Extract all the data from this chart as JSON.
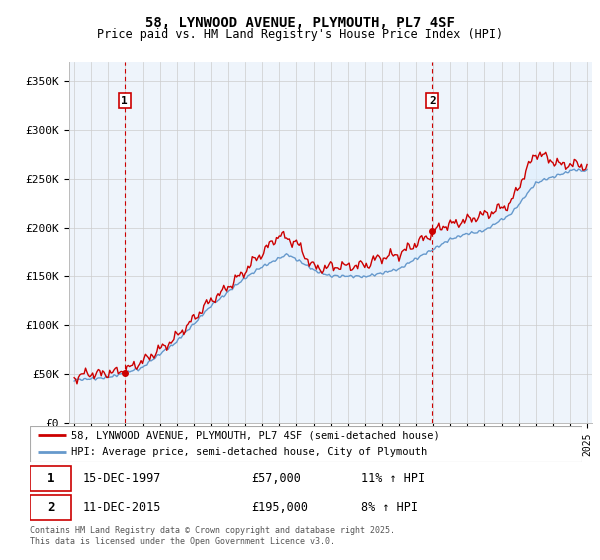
{
  "title1": "58, LYNWOOD AVENUE, PLYMOUTH, PL7 4SF",
  "title2": "Price paid vs. HM Land Registry's House Price Index (HPI)",
  "ylabel_ticks": [
    "£0",
    "£50K",
    "£100K",
    "£150K",
    "£200K",
    "£250K",
    "£300K",
    "£350K"
  ],
  "ytick_vals": [
    0,
    50000,
    100000,
    150000,
    200000,
    250000,
    300000,
    350000
  ],
  "ylim": [
    0,
    370000
  ],
  "xlim_start": 1994.7,
  "xlim_end": 2025.3,
  "sale1_x": 1997.96,
  "sale1_y": 57000,
  "sale1_label": "1",
  "sale2_x": 2015.95,
  "sale2_y": 195000,
  "sale2_label": "2",
  "legend_line1": "58, LYNWOOD AVENUE, PLYMOUTH, PL7 4SF (semi-detached house)",
  "legend_line2": "HPI: Average price, semi-detached house, City of Plymouth",
  "annotation1_date": "15-DEC-1997",
  "annotation1_price": "£57,000",
  "annotation1_hpi": "11% ↑ HPI",
  "annotation2_date": "11-DEC-2015",
  "annotation2_price": "£195,000",
  "annotation2_hpi": "8% ↑ HPI",
  "copyright_text": "Contains HM Land Registry data © Crown copyright and database right 2025.\nThis data is licensed under the Open Government Licence v3.0.",
  "line_color_red": "#cc0000",
  "line_color_blue": "#6699cc",
  "fill_color_blue": "#ddeeff",
  "dashed_line_color": "#cc0000",
  "background_color": "#ffffff",
  "grid_color": "#cccccc",
  "plot_bg_color": "#eef4fb"
}
